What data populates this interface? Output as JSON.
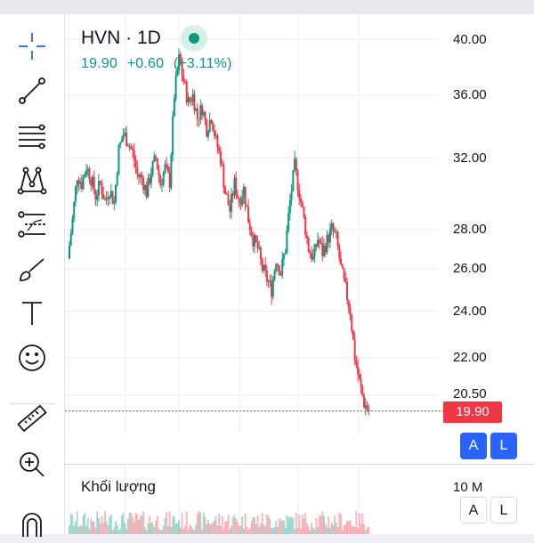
{
  "header": {
    "symbol": "HVN · 1D",
    "last": "19.90",
    "change": "+0.60",
    "change_pct": "(+3.11%)"
  },
  "price_axis": {
    "ticks": [
      "40.00",
      "36.00",
      "32.00",
      "28.00",
      "26.00",
      "24.00",
      "22.00",
      "20.50"
    ],
    "current_price": "19.90",
    "scale_buttons": {
      "auto": "A",
      "log": "L"
    }
  },
  "volume": {
    "title": "Khối lượng",
    "axis_tick": "10 M",
    "scale_buttons": {
      "auto": "A",
      "log": "L"
    }
  },
  "colors": {
    "up": "#089981",
    "down": "#f23645",
    "accent": "#2962ff"
  },
  "toolbar": {
    "tools": [
      "crosshair-icon",
      "trend-line-icon",
      "fib-retracement-icon",
      "pattern-icon",
      "prediction-icon",
      "brush-icon",
      "text-icon",
      "emoji-icon",
      "ruler-icon",
      "zoom-in-icon",
      "magnet-icon"
    ]
  },
  "chart_data": {
    "type": "candlestick",
    "symbol": "HVN",
    "interval": "1D",
    "y_ticks": [
      40.0,
      36.0,
      32.0,
      28.0,
      26.0,
      24.0,
      22.0,
      20.5
    ],
    "scale": "log",
    "last_price": 19.9,
    "close_path": [
      26.5,
      28.5,
      31.0,
      30.5,
      31.5,
      30.8,
      29.8,
      30.5,
      29.5,
      30.2,
      29.4,
      32.5,
      33.5,
      33.0,
      32.3,
      31.0,
      30.8,
      30.0,
      31.2,
      32.0,
      30.5,
      31.4,
      30.6,
      36.0,
      38.5,
      37.0,
      35.5,
      36.0,
      34.5,
      35.2,
      33.8,
      34.6,
      33.0,
      32.0,
      30.0,
      29.0,
      30.5,
      29.5,
      30.2,
      28.5,
      27.5,
      27.0,
      26.0,
      25.5,
      25.0,
      26.5,
      25.8,
      27.0,
      29.5,
      31.5,
      30.0,
      28.5,
      27.0,
      26.5,
      27.5,
      26.8,
      27.4,
      28.0,
      27.5,
      26.0,
      25.0,
      24.0,
      22.0,
      21.0,
      20.2,
      19.9
    ]
  }
}
